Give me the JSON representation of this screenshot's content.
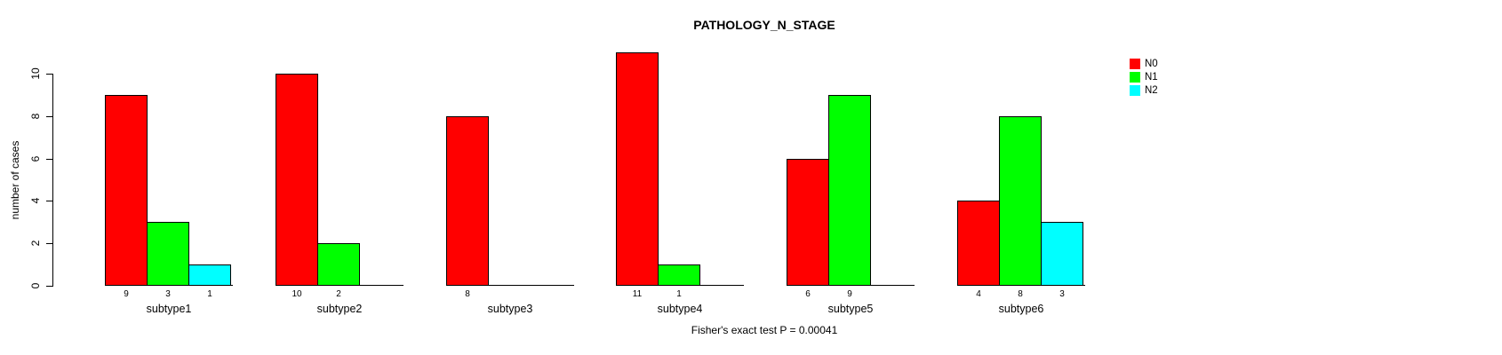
{
  "chart_data": {
    "type": "bar",
    "title": "PATHOLOGY_N_STAGE",
    "xlabel": "",
    "ylabel": "number of cases",
    "categories": [
      "subtype1",
      "subtype2",
      "subtype3",
      "subtype4",
      "subtype5",
      "subtype6"
    ],
    "series": [
      {
        "name": "N0",
        "color": "#FF0000",
        "values": [
          9,
          10,
          8,
          11,
          6,
          4
        ]
      },
      {
        "name": "N1",
        "color": "#00FF00",
        "values": [
          3,
          2,
          0,
          1,
          9,
          8
        ]
      },
      {
        "name": "N2",
        "color": "#00FFFF",
        "values": [
          1,
          0,
          0,
          0,
          0,
          3
        ]
      }
    ],
    "yticks": [
      0,
      2,
      4,
      6,
      8,
      10
    ],
    "ylim": [
      0,
      11
    ],
    "grid": false,
    "legend_position": "right",
    "bar_border_color": "#000000",
    "value_labels": "shown under each non-zero bar",
    "annotation": "Fisher's exact test P = 0.00041"
  }
}
